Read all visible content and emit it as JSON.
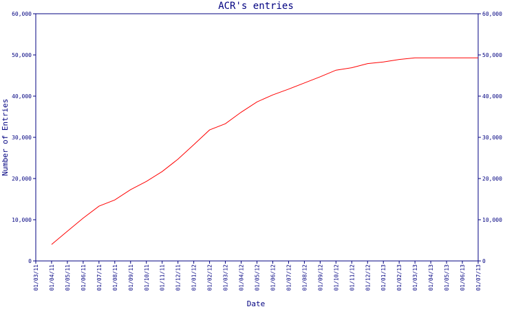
{
  "chart_data": {
    "type": "line",
    "title": "ACR's entries",
    "xlabel": "Date",
    "ylabel": "Number of Entries",
    "ylim": [
      0,
      60000
    ],
    "y_ticks": [
      0,
      10000,
      20000,
      30000,
      40000,
      50000,
      60000
    ],
    "y_tick_labels": [
      "0",
      "10,000",
      "20,000",
      "30,000",
      "40,000",
      "50,000",
      "60,000"
    ],
    "right_axis_mirrored": true,
    "x_tick_labels": [
      "01/03/11",
      "01/04/11",
      "01/05/11",
      "01/06/11",
      "01/07/11",
      "01/08/11",
      "01/09/11",
      "01/10/11",
      "01/11/11",
      "01/12/11",
      "01/01/12",
      "01/02/12",
      "01/03/12",
      "01/04/12",
      "01/05/12",
      "01/06/12",
      "01/07/12",
      "01/08/12",
      "01/09/12",
      "01/10/12",
      "01/11/12",
      "01/12/12",
      "01/01/13",
      "01/02/13",
      "01/03/13",
      "01/04/13",
      "01/05/13",
      "01/06/13",
      "01/07/13"
    ],
    "series_color": "#ff0000",
    "axis_color": "#000080",
    "series": [
      {
        "x": [
          "01/04/11",
          "01/05/11",
          "01/06/11",
          "01/07/11",
          "01/08/11",
          "01/09/11",
          "01/10/11",
          "01/11/11",
          "01/12/11",
          "01/01/12",
          "01/02/12",
          "01/03/12",
          "01/04/12",
          "01/05/12",
          "01/06/12",
          "01/07/12",
          "01/08/12",
          "01/09/12",
          "01/10/12",
          "01/11/12",
          "01/12/12",
          "01/01/13",
          "01/02/13",
          "01/03/13",
          "01/04/13",
          "01/05/13",
          "01/06/13",
          "01/07/13"
        ],
        "values": [
          4000,
          7200,
          10400,
          13300,
          14800,
          17300,
          19300,
          21700,
          24700,
          28200,
          31800,
          33300,
          36100,
          38600,
          40300,
          41700,
          43200,
          44700,
          46300,
          46900,
          47900,
          48300,
          48900,
          49300,
          49300,
          49300,
          49300,
          49300
        ]
      }
    ]
  }
}
